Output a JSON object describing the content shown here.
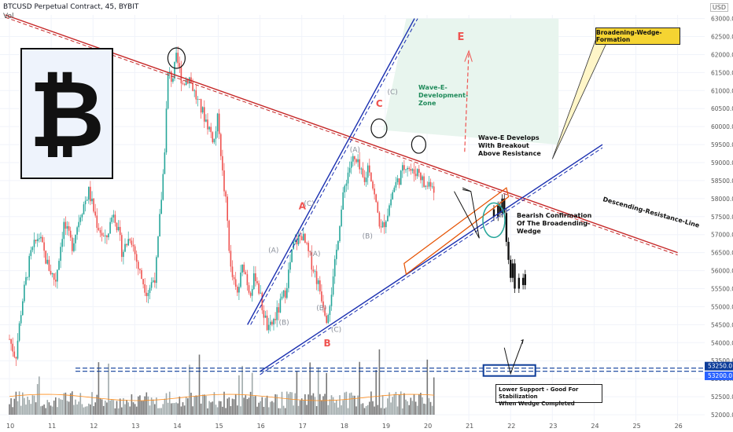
{
  "header": {
    "title": "BTCUSD Perpetual Contract, 45, BYBIT",
    "volume_label": "Vol",
    "currency": "USD"
  },
  "logo": {
    "symbol": "₿",
    "icon": "bitcoin-icon"
  },
  "annotations": {
    "wave_labels": {
      "A": "A",
      "B": "B",
      "C": "C",
      "E": "E"
    },
    "sub_labels": [
      "(A)",
      "(B)",
      "(C)",
      "(A)",
      "(B)",
      "(C)",
      "(A)",
      "(B)",
      "(C)"
    ],
    "development_zone": [
      "Wave-E-",
      "Development-",
      "Zone"
    ],
    "wave_e_note": [
      "Wave-E Develops",
      "With Breakout",
      "Above Resistance"
    ],
    "bearish_note": [
      "Bearish Confirmation",
      "Of The Broadending-Wedge"
    ],
    "resistance_label": "Descending-Resistance-Line",
    "broadening_label": "Broadening-Wedge-Formation",
    "support_label": [
      "Lower Support - Good For Stabilization",
      "When Wedge Completed"
    ]
  },
  "colors": {
    "up": "#26a69a",
    "down": "#ef5350",
    "resistance": "#c62828",
    "wedge": "#1a2fb0",
    "orange": "#e65100",
    "zone": "#e8f5ee",
    "support_box": "#0d3c99"
  },
  "chart_data": {
    "type": "candlestick",
    "symbol": "BTCUSD Perpetual Contract",
    "timeframe": "45",
    "exchange": "BYBIT",
    "x_ticks": [
      "10",
      "11",
      "12",
      "13",
      "14",
      "15",
      "16",
      "17",
      "18",
      "19",
      "20",
      "21",
      "22",
      "23",
      "24",
      "25",
      "26"
    ],
    "y_ticks": [
      "63000.0",
      "62500.0",
      "62000.0",
      "61500.0",
      "61000.0",
      "60500.0",
      "60000.0",
      "59500.0",
      "59000.0",
      "58500.0",
      "58000.0",
      "57500.0",
      "57000.0",
      "56500.0",
      "56000.0",
      "55500.0",
      "55000.0",
      "54500.0",
      "54000.0",
      "53500.0",
      "53000.0",
      "52500.0",
      "52000.0"
    ],
    "ylim": [
      52000,
      63100
    ],
    "price_labels": [
      {
        "label": "53250.0",
        "value": 53250
      },
      {
        "label": "53200.0",
        "value": 53200
      }
    ],
    "support_level": 53250,
    "close_path": [
      [
        10.0,
        54100
      ],
      [
        10.15,
        53600
      ],
      [
        10.3,
        55100
      ],
      [
        10.5,
        56400
      ],
      [
        10.7,
        57000
      ],
      [
        10.9,
        56200
      ],
      [
        11.1,
        55700
      ],
      [
        11.3,
        57300
      ],
      [
        11.5,
        56700
      ],
      [
        11.7,
        57600
      ],
      [
        11.9,
        58200
      ],
      [
        12.1,
        57300
      ],
      [
        12.3,
        56800
      ],
      [
        12.5,
        57700
      ],
      [
        12.7,
        56500
      ],
      [
        12.9,
        57000
      ],
      [
        13.1,
        56000
      ],
      [
        13.3,
        55400
      ],
      [
        13.5,
        55900
      ],
      [
        13.7,
        59000
      ],
      [
        13.8,
        61500
      ],
      [
        13.9,
        61300
      ],
      [
        14.0,
        61900
      ],
      [
        14.15,
        61200
      ],
      [
        14.3,
        61400
      ],
      [
        14.5,
        60700
      ],
      [
        14.7,
        60200
      ],
      [
        14.9,
        59600
      ],
      [
        15.0,
        60300
      ],
      [
        15.1,
        58700
      ],
      [
        15.2,
        57700
      ],
      [
        15.3,
        56000
      ],
      [
        15.45,
        55300
      ],
      [
        15.6,
        56200
      ],
      [
        15.75,
        55400
      ],
      [
        15.9,
        55900
      ],
      [
        16.05,
        55000
      ],
      [
        16.2,
        54300
      ],
      [
        16.4,
        54800
      ],
      [
        16.6,
        55400
      ],
      [
        16.8,
        56700
      ],
      [
        17.0,
        57000
      ],
      [
        17.15,
        56500
      ],
      [
        17.3,
        56000
      ],
      [
        17.45,
        55400
      ],
      [
        17.6,
        54700
      ],
      [
        17.75,
        55700
      ],
      [
        17.9,
        57300
      ],
      [
        18.05,
        58500
      ],
      [
        18.2,
        59100
      ],
      [
        18.35,
        58900
      ],
      [
        18.5,
        58400
      ],
      [
        18.6,
        59000
      ],
      [
        18.75,
        58000
      ],
      [
        18.9,
        57100
      ],
      [
        19.05,
        57600
      ],
      [
        19.2,
        58300
      ],
      [
        19.35,
        58600
      ],
      [
        19.5,
        59000
      ],
      [
        19.65,
        58700
      ],
      [
        19.8,
        58800
      ],
      [
        19.95,
        58300
      ],
      [
        20.1,
        58500
      ],
      [
        20.2,
        58200
      ]
    ],
    "projection": [
      [
        21.6,
        57500
      ],
      [
        21.7,
        57800
      ],
      [
        21.75,
        57600
      ],
      [
        21.8,
        58000
      ],
      [
        21.85,
        57600
      ],
      [
        21.9,
        56800
      ],
      [
        21.95,
        56300
      ],
      [
        22.0,
        55800
      ],
      [
        22.05,
        56200
      ],
      [
        22.1,
        55500
      ],
      [
        22.2,
        55800
      ],
      [
        22.3,
        55600
      ],
      [
        22.35,
        55900
      ]
    ],
    "resistance_line": [
      [
        9.9,
        63100
      ],
      [
        26.0,
        56500
      ]
    ],
    "wedge_upper": [
      [
        15.7,
        54500
      ],
      [
        19.7,
        63000
      ]
    ],
    "wedge_lower": [
      [
        16.0,
        53200
      ],
      [
        24.2,
        59500
      ]
    ]
  }
}
